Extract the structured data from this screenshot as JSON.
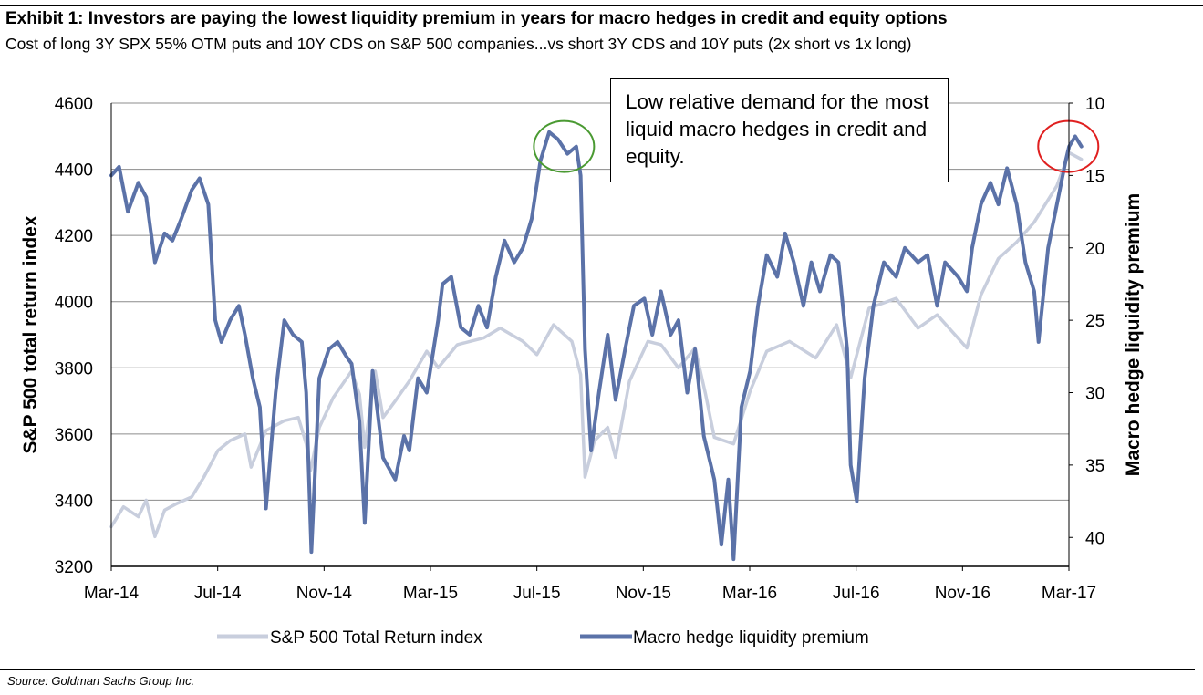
{
  "header": {
    "title": "Exhibit 1: Investors are paying the lowest liquidity premium in years for macro hedges in credit and equity options",
    "subtitle": "Cost of long 3Y SPX 55% OTM puts and 10Y CDS on S&P 500 companies...vs short 3Y CDS and 10Y puts (2x short vs 1x long)"
  },
  "annotation": {
    "text": "Low relative demand for the most liquid macro hedges in credit and equity."
  },
  "source": "Source: Goldman Sachs Group Inc.",
  "chart_data": {
    "type": "line",
    "title": "Exhibit 1: Investors are paying the lowest liquidity premium in years for macro hedges in credit and equity options",
    "subtitle": "Cost of long 3Y SPX 55% OTM puts and 10Y CDS on S&P 500 companies...vs short 3Y CDS and 10Y puts (2x short vs 1x long)",
    "x_tick_labels": [
      "Mar-14",
      "Jul-14",
      "Nov-14",
      "Mar-15",
      "Jul-15",
      "Nov-15",
      "Mar-16",
      "Jul-16",
      "Nov-16",
      "Mar-17"
    ],
    "y_left": {
      "label": "S&P 500 total return index",
      "min": 3200,
      "max": 4600,
      "ticks": [
        3200,
        3400,
        3600,
        3800,
        4000,
        4200,
        4400,
        4600
      ]
    },
    "y_right": {
      "label": "Macro hedge liquidity premium",
      "min": 10,
      "max": 42,
      "inverted": true,
      "ticks": [
        10,
        15,
        20,
        25,
        30,
        35,
        40
      ]
    },
    "grid": true,
    "legend_position": "bottom",
    "series": [
      {
        "name": "S&P 500 Total Return index",
        "axis": "left",
        "color": "#c8cedd",
        "points": [
          [
            "2014-03-01",
            3320
          ],
          [
            "2014-03-15",
            3380
          ],
          [
            "2014-04-01",
            3350
          ],
          [
            "2014-04-10",
            3400
          ],
          [
            "2014-04-20",
            3290
          ],
          [
            "2014-05-01",
            3370
          ],
          [
            "2014-05-15",
            3390
          ],
          [
            "2014-06-01",
            3410
          ],
          [
            "2014-06-15",
            3470
          ],
          [
            "2014-07-01",
            3550
          ],
          [
            "2014-07-15",
            3580
          ],
          [
            "2014-08-01",
            3600
          ],
          [
            "2014-08-08",
            3500
          ],
          [
            "2014-08-25",
            3610
          ],
          [
            "2014-09-15",
            3640
          ],
          [
            "2014-10-01",
            3650
          ],
          [
            "2014-10-10",
            3570
          ],
          [
            "2014-10-15",
            3490
          ],
          [
            "2014-10-25",
            3620
          ],
          [
            "2014-11-10",
            3710
          ],
          [
            "2014-12-01",
            3790
          ],
          [
            "2014-12-10",
            3720
          ],
          [
            "2014-12-16",
            3560
          ],
          [
            "2014-12-28",
            3790
          ],
          [
            "2015-01-06",
            3650
          ],
          [
            "2015-01-20",
            3700
          ],
          [
            "2015-02-05",
            3760
          ],
          [
            "2015-02-25",
            3850
          ],
          [
            "2015-03-10",
            3800
          ],
          [
            "2015-04-01",
            3870
          ],
          [
            "2015-05-01",
            3890
          ],
          [
            "2015-05-20",
            3920
          ],
          [
            "2015-06-15",
            3880
          ],
          [
            "2015-07-01",
            3840
          ],
          [
            "2015-07-20",
            3930
          ],
          [
            "2015-08-10",
            3880
          ],
          [
            "2015-08-20",
            3780
          ],
          [
            "2015-08-25",
            3470
          ],
          [
            "2015-09-05",
            3580
          ],
          [
            "2015-09-20",
            3620
          ],
          [
            "2015-09-29",
            3530
          ],
          [
            "2015-10-15",
            3760
          ],
          [
            "2015-11-05",
            3880
          ],
          [
            "2015-11-20",
            3870
          ],
          [
            "2015-12-10",
            3800
          ],
          [
            "2015-12-29",
            3860
          ],
          [
            "2016-01-10",
            3720
          ],
          [
            "2016-01-20",
            3590
          ],
          [
            "2016-02-11",
            3570
          ],
          [
            "2016-03-01",
            3730
          ],
          [
            "2016-03-20",
            3850
          ],
          [
            "2016-04-15",
            3880
          ],
          [
            "2016-05-15",
            3830
          ],
          [
            "2016-06-08",
            3930
          ],
          [
            "2016-06-24",
            3770
          ],
          [
            "2016-07-15",
            3980
          ],
          [
            "2016-08-15",
            4010
          ],
          [
            "2016-09-09",
            3920
          ],
          [
            "2016-10-01",
            3960
          ],
          [
            "2016-11-04",
            3860
          ],
          [
            "2016-11-20",
            4020
          ],
          [
            "2016-12-10",
            4130
          ],
          [
            "2016-12-31",
            4180
          ],
          [
            "2017-01-20",
            4240
          ],
          [
            "2017-02-15",
            4350
          ],
          [
            "2017-03-01",
            4450
          ],
          [
            "2017-03-15",
            4430
          ]
        ]
      },
      {
        "name": "Macro hedge liquidity premium",
        "axis": "right",
        "color": "#5b72a8",
        "points": [
          [
            "2014-03-01",
            15
          ],
          [
            "2014-03-10",
            14.4
          ],
          [
            "2014-03-20",
            17.5
          ],
          [
            "2014-04-01",
            15.5
          ],
          [
            "2014-04-10",
            16.5
          ],
          [
            "2014-04-20",
            21
          ],
          [
            "2014-05-01",
            19
          ],
          [
            "2014-05-10",
            19.5
          ],
          [
            "2014-05-20",
            18
          ],
          [
            "2014-06-01",
            16
          ],
          [
            "2014-06-10",
            15.2
          ],
          [
            "2014-06-20",
            17
          ],
          [
            "2014-06-28",
            25
          ],
          [
            "2014-07-05",
            26.5
          ],
          [
            "2014-07-15",
            25
          ],
          [
            "2014-07-25",
            24
          ],
          [
            "2014-08-01",
            26
          ],
          [
            "2014-08-10",
            29
          ],
          [
            "2014-08-18",
            31
          ],
          [
            "2014-08-25",
            38
          ],
          [
            "2014-09-05",
            30
          ],
          [
            "2014-09-15",
            25
          ],
          [
            "2014-09-25",
            26
          ],
          [
            "2014-10-05",
            26.5
          ],
          [
            "2014-10-10",
            30
          ],
          [
            "2014-10-16",
            41
          ],
          [
            "2014-10-25",
            29
          ],
          [
            "2014-11-05",
            27
          ],
          [
            "2014-11-15",
            26.5
          ],
          [
            "2014-11-25",
            27.5
          ],
          [
            "2014-12-01",
            28
          ],
          [
            "2014-12-10",
            32
          ],
          [
            "2014-12-16",
            39
          ],
          [
            "2014-12-25",
            28.5
          ],
          [
            "2015-01-06",
            34.5
          ],
          [
            "2015-01-20",
            36
          ],
          [
            "2015-01-30",
            33
          ],
          [
            "2015-02-05",
            34
          ],
          [
            "2015-02-15",
            29
          ],
          [
            "2015-02-25",
            30
          ],
          [
            "2015-03-10",
            25
          ],
          [
            "2015-03-15",
            22.5
          ],
          [
            "2015-03-25",
            22
          ],
          [
            "2015-04-05",
            25.5
          ],
          [
            "2015-04-15",
            26
          ],
          [
            "2015-04-25",
            24
          ],
          [
            "2015-05-05",
            25.5
          ],
          [
            "2015-05-15",
            22
          ],
          [
            "2015-05-25",
            19.5
          ],
          [
            "2015-06-05",
            21
          ],
          [
            "2015-06-15",
            20
          ],
          [
            "2015-06-25",
            18
          ],
          [
            "2015-07-05",
            14
          ],
          [
            "2015-07-15",
            12
          ],
          [
            "2015-07-25",
            12.5
          ],
          [
            "2015-08-05",
            13.5
          ],
          [
            "2015-08-15",
            13
          ],
          [
            "2015-08-20",
            15
          ],
          [
            "2015-08-25",
            27
          ],
          [
            "2015-09-01",
            34
          ],
          [
            "2015-09-10",
            30
          ],
          [
            "2015-09-20",
            26
          ],
          [
            "2015-09-29",
            30.5
          ],
          [
            "2015-10-10",
            27
          ],
          [
            "2015-10-20",
            24
          ],
          [
            "2015-11-01",
            23.5
          ],
          [
            "2015-11-10",
            26
          ],
          [
            "2015-11-20",
            23
          ],
          [
            "2015-12-01",
            26
          ],
          [
            "2015-12-10",
            25
          ],
          [
            "2015-12-20",
            30
          ],
          [
            "2015-12-29",
            27
          ],
          [
            "2016-01-08",
            33
          ],
          [
            "2016-01-20",
            36
          ],
          [
            "2016-01-28",
            40.5
          ],
          [
            "2016-02-05",
            36
          ],
          [
            "2016-02-11",
            41.5
          ],
          [
            "2016-02-20",
            31
          ],
          [
            "2016-03-01",
            28.5
          ],
          [
            "2016-03-10",
            24
          ],
          [
            "2016-03-20",
            20.5
          ],
          [
            "2016-04-01",
            22
          ],
          [
            "2016-04-10",
            19
          ],
          [
            "2016-04-20",
            21
          ],
          [
            "2016-05-01",
            24
          ],
          [
            "2016-05-10",
            21
          ],
          [
            "2016-05-20",
            23
          ],
          [
            "2016-06-01",
            20.5
          ],
          [
            "2016-06-10",
            21
          ],
          [
            "2016-06-20",
            27
          ],
          [
            "2016-06-24",
            35
          ],
          [
            "2016-07-01",
            37.5
          ],
          [
            "2016-07-10",
            29
          ],
          [
            "2016-07-20",
            24
          ],
          [
            "2016-08-01",
            21
          ],
          [
            "2016-08-15",
            22
          ],
          [
            "2016-08-25",
            20
          ],
          [
            "2016-09-09",
            21
          ],
          [
            "2016-09-20",
            20.5
          ],
          [
            "2016-10-01",
            24
          ],
          [
            "2016-10-10",
            21
          ],
          [
            "2016-10-25",
            22
          ],
          [
            "2016-11-04",
            23
          ],
          [
            "2016-11-10",
            20
          ],
          [
            "2016-11-20",
            17
          ],
          [
            "2016-12-01",
            15.5
          ],
          [
            "2016-12-10",
            17
          ],
          [
            "2016-12-20",
            14.5
          ],
          [
            "2016-12-31",
            17
          ],
          [
            "2017-01-10",
            21
          ],
          [
            "2017-01-20",
            23
          ],
          [
            "2017-01-25",
            26.5
          ],
          [
            "2017-02-05",
            20
          ],
          [
            "2017-02-15",
            17
          ],
          [
            "2017-02-25",
            14
          ],
          [
            "2017-03-01",
            13
          ],
          [
            "2017-03-08",
            12.3
          ],
          [
            "2017-03-15",
            13
          ]
        ]
      }
    ],
    "highlights": [
      {
        "date": "2015-08-01",
        "value": 13,
        "axis": "right",
        "color": "#4a9a32"
      },
      {
        "date": "2017-02-28",
        "value": 13,
        "axis": "right",
        "color": "#e02020"
      }
    ]
  }
}
